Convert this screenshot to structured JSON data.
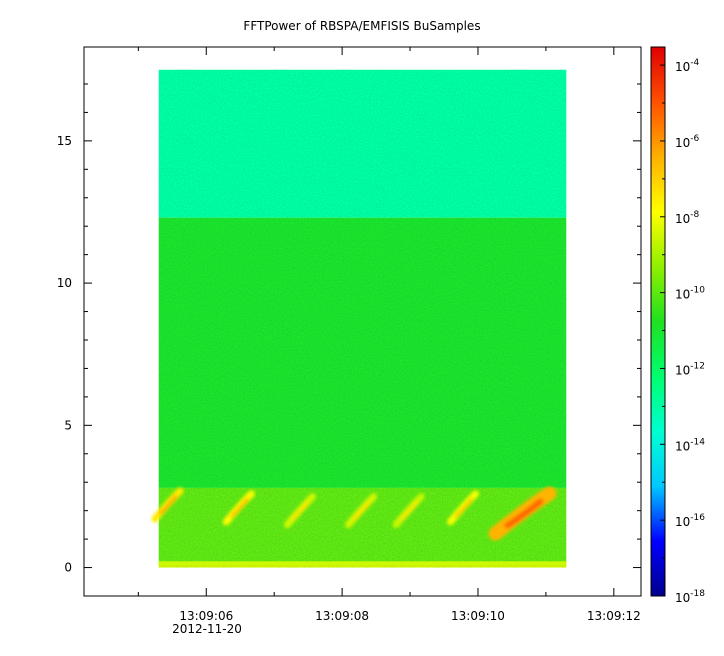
{
  "chart_data": {
    "type": "heatmap",
    "title": "FFTPower of RBSPA/EMFISIS  BuSamples",
    "xlabel": "",
    "ylabel": "",
    "x_ticks": [
      "",
      "13:09:06",
      "",
      "13:09:08",
      "",
      "13:09:10",
      "",
      "13:09:12"
    ],
    "x_tick_values_s": [
      5.0,
      6.0,
      7.0,
      8.0,
      9.0,
      10.0,
      11.0,
      12.0
    ],
    "x_date_label": "2012-11-20",
    "x_range_s": [
      4.2,
      12.4
    ],
    "data_x_range_s": [
      5.3,
      11.3
    ],
    "y_ticks": [
      "0",
      "5",
      "10",
      "15"
    ],
    "y_tick_values": [
      0,
      5,
      10,
      15
    ],
    "ylim": [
      -1,
      18.3
    ],
    "data_y_range": [
      0,
      17.5
    ],
    "colorbar": {
      "scale": "log",
      "range": [
        1e-18,
        0.0003
      ],
      "tick_base": "10",
      "tick_exponents": [
        "-4",
        "-6",
        "-8",
        "-10",
        "-12",
        "-14",
        "-16",
        "-18"
      ],
      "tick_exponent_values": [
        -4,
        -6,
        -8,
        -10,
        -12,
        -14,
        -16,
        -18
      ],
      "colors": [
        "#00008c",
        "#0000ff",
        "#00c8ff",
        "#00ffd0",
        "#00ff70",
        "#20e020",
        "#90f000",
        "#ffff00",
        "#ffb000",
        "#ff5000",
        "#e00000"
      ]
    },
    "bands": [
      {
        "y_range": [
          12.3,
          17.5
        ],
        "level_exp": -13.0
      },
      {
        "y_range": [
          2.8,
          12.3
        ],
        "level_exp": -11.0
      },
      {
        "y_range": [
          0.1,
          2.8
        ],
        "level_exp": -10.0
      },
      {
        "y_range": [
          0,
          0.15
        ],
        "level_exp": -8.5
      }
    ],
    "bursts": [
      {
        "time_s": 5.45,
        "y_center": 2.2,
        "level_exp": -7.5
      },
      {
        "time_s": 6.5,
        "y_center": 2.1,
        "level_exp": -7.8
      },
      {
        "time_s": 7.4,
        "y_center": 2.0,
        "level_exp": -8.5
      },
      {
        "time_s": 8.3,
        "y_center": 2.0,
        "level_exp": -8.5
      },
      {
        "time_s": 9.0,
        "y_center": 2.0,
        "level_exp": -8.6
      },
      {
        "time_s": 9.8,
        "y_center": 2.1,
        "level_exp": -8.0
      },
      {
        "time_s": 10.7,
        "y_center": 1.9,
        "level_exp": -6.5
      }
    ]
  }
}
